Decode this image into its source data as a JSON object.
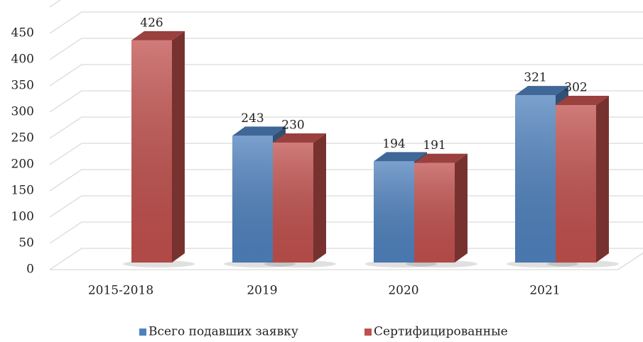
{
  "chart_data": {
    "type": "bar3d",
    "categories": [
      "2015-2018",
      "2019",
      "2020",
      "2021"
    ],
    "series": [
      {
        "name": "Всего подавших заявку",
        "color": "#4f81bd",
        "values": [
          null,
          243,
          194,
          321
        ]
      },
      {
        "name": "Сертифицированные",
        "color": "#c0504d",
        "values": [
          426,
          230,
          191,
          302
        ]
      }
    ],
    "ylim": [
      0,
      500
    ],
    "yticks": [
      0,
      50,
      100,
      150,
      200,
      250,
      300,
      350,
      400,
      450
    ],
    "grid": true,
    "legend": "bottom"
  }
}
